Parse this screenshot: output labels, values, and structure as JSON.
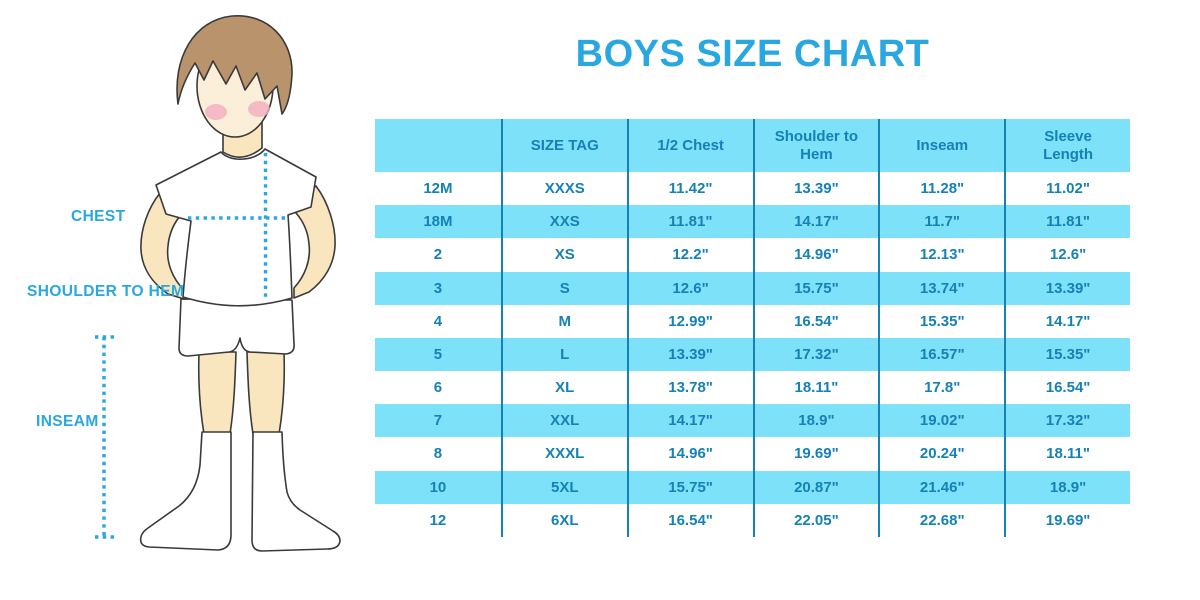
{
  "title": "BOYS SIZE CHART",
  "figure_labels": {
    "chest": "CHEST",
    "shoulder_to_hem": "SHOULDER TO HEM",
    "inseam": "INSEAM"
  },
  "colors": {
    "accent_blue": "#29A7E1",
    "table_text": "#1581B5",
    "line_blue": "#1581B5",
    "row_cyan": "#7DE1F9",
    "hair_brown": "#B8936C",
    "skin": "#F9E6BE",
    "face_skin": "#FCEFDA",
    "cheek_pink": "#F2AEBE",
    "outline": "#3A3A3A"
  },
  "chart_data": {
    "type": "table",
    "title": "BOYS SIZE CHART",
    "units": "inches",
    "row_stripe": [
      "white",
      "cyan"
    ],
    "columns": [
      "",
      "SIZE TAG",
      "1/2 Chest",
      "Shoulder to Hem",
      "Inseam",
      "Sleeve Length"
    ],
    "rows": [
      [
        "12M",
        "XXXS",
        "11.42\"",
        "13.39\"",
        "11.28\"",
        "11.02\""
      ],
      [
        "18M",
        "XXS",
        "11.81\"",
        "14.17\"",
        "11.7\"",
        "11.81\""
      ],
      [
        "2",
        "XS",
        "12.2\"",
        "14.96\"",
        "12.13\"",
        "12.6\""
      ],
      [
        "3",
        "S",
        "12.6\"",
        "15.75\"",
        "13.74\"",
        "13.39\""
      ],
      [
        "4",
        "M",
        "12.99\"",
        "16.54\"",
        "15.35\"",
        "14.17\""
      ],
      [
        "5",
        "L",
        "13.39\"",
        "17.32\"",
        "16.57\"",
        "15.35\""
      ],
      [
        "6",
        "XL",
        "13.78\"",
        "18.11\"",
        "17.8\"",
        "16.54\""
      ],
      [
        "7",
        "XXL",
        "14.17\"",
        "18.9\"",
        "19.02\"",
        "17.32\""
      ],
      [
        "8",
        "XXXL",
        "14.96\"",
        "19.69\"",
        "20.24\"",
        "18.11\""
      ],
      [
        "10",
        "5XL",
        "15.75\"",
        "20.87\"",
        "21.46\"",
        "18.9\""
      ],
      [
        "12",
        "6XL",
        "16.54\"",
        "22.05\"",
        "22.68\"",
        "19.69\""
      ]
    ]
  }
}
